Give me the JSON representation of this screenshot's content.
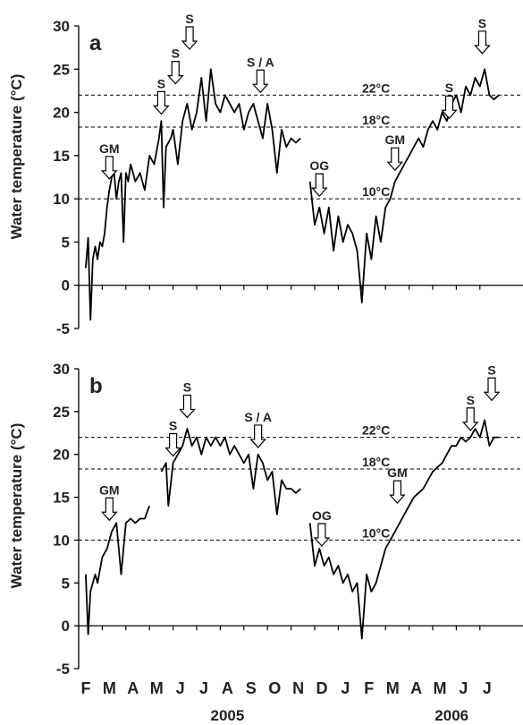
{
  "figure": {
    "ylabel": "Water temperature (°C)",
    "month_labels": [
      "F",
      "M",
      "A",
      "M",
      "J",
      "J",
      "A",
      "S",
      "O",
      "N",
      "D",
      "J",
      "F",
      "M",
      "A",
      "M",
      "J",
      "J"
    ],
    "year_labels": [
      {
        "text": "2005",
        "month_index": 6
      },
      {
        "text": "2006",
        "month_index": 15.5
      }
    ]
  },
  "colors": {
    "line": "#000000",
    "axis": "#000000",
    "text": "#222222",
    "threshold": "#000000"
  },
  "chart_data": [
    {
      "panel": "a",
      "type": "line",
      "xlabel": "",
      "ylabel": "Water temperature (°C)",
      "x_unit": "month (0 = 1 Feb 2005)",
      "xlim": [
        0,
        17.9
      ],
      "ylim": [
        -5,
        30
      ],
      "yticks": [
        -5,
        0,
        5,
        10,
        15,
        20,
        25,
        30
      ],
      "thresholds": [
        {
          "value": 22,
          "label": "22°C"
        },
        {
          "value": 18.3,
          "label": "18°C"
        },
        {
          "value": 10,
          "label": "10°C"
        }
      ],
      "annotations": [
        {
          "label": "GM",
          "x": 1.3,
          "y": 12
        },
        {
          "label": "S",
          "x": 3.5,
          "y": 19.5
        },
        {
          "label": "S",
          "x": 4.1,
          "y": 23
        },
        {
          "label": "S",
          "x": 4.7,
          "y": 27
        },
        {
          "label": "S / A",
          "x": 7.7,
          "y": 22
        },
        {
          "label": "OG",
          "x": 10.2,
          "y": 10
        },
        {
          "label": "GM",
          "x": 13.4,
          "y": 13
        },
        {
          "label": "S",
          "x": 15.7,
          "y": 19
        },
        {
          "label": "S",
          "x": 17.1,
          "y": 26.5
        }
      ],
      "series": [
        {
          "segments": [
            [
              [
                0.3,
                2
              ],
              [
                0.4,
                5.5
              ],
              [
                0.5,
                -4
              ],
              [
                0.6,
                3
              ],
              [
                0.7,
                4.5
              ],
              [
                0.8,
                3
              ],
              [
                0.9,
                5
              ],
              [
                1.0,
                4.5
              ],
              [
                1.1,
                6
              ],
              [
                1.2,
                9
              ],
              [
                1.3,
                11
              ],
              [
                1.4,
                12.5
              ],
              [
                1.5,
                13
              ],
              [
                1.6,
                10
              ],
              [
                1.7,
                12
              ],
              [
                1.8,
                13
              ],
              [
                1.9,
                5
              ],
              [
                2.0,
                13
              ],
              [
                2.1,
                12
              ],
              [
                2.2,
                14
              ],
              [
                2.4,
                12
              ],
              [
                2.6,
                13
              ],
              [
                2.8,
                11
              ],
              [
                3.0,
                15
              ],
              [
                3.2,
                14
              ],
              [
                3.4,
                17
              ],
              [
                3.5,
                19
              ],
              [
                3.6,
                9
              ],
              [
                3.7,
                16
              ],
              [
                3.9,
                17
              ],
              [
                4.0,
                18
              ],
              [
                4.2,
                14
              ],
              [
                4.4,
                19
              ],
              [
                4.6,
                21
              ],
              [
                4.8,
                18
              ],
              [
                5.0,
                20
              ],
              [
                5.2,
                24
              ],
              [
                5.4,
                19
              ],
              [
                5.6,
                25
              ],
              [
                5.8,
                21
              ],
              [
                6.0,
                20
              ],
              [
                6.2,
                22
              ],
              [
                6.4,
                21
              ],
              [
                6.6,
                20
              ],
              [
                6.8,
                21
              ],
              [
                7.0,
                18
              ],
              [
                7.2,
                20
              ],
              [
                7.4,
                21
              ],
              [
                7.6,
                19
              ],
              [
                7.8,
                17
              ],
              [
                8.0,
                21
              ],
              [
                8.2,
                18
              ],
              [
                8.4,
                13
              ],
              [
                8.6,
                18
              ],
              [
                8.8,
                16
              ],
              [
                9.0,
                17
              ],
              [
                9.2,
                16.5
              ],
              [
                9.4,
                17
              ]
            ],
            [
              [
                9.8,
                12
              ],
              [
                10.0,
                7
              ],
              [
                10.2,
                9
              ],
              [
                10.4,
                6
              ],
              [
                10.6,
                9
              ],
              [
                10.8,
                4
              ],
              [
                11.0,
                8
              ],
              [
                11.2,
                5
              ],
              [
                11.4,
                7
              ],
              [
                11.6,
                6
              ],
              [
                11.8,
                4
              ],
              [
                12.0,
                -2
              ],
              [
                12.2,
                6
              ],
              [
                12.4,
                3
              ],
              [
                12.6,
                8
              ],
              [
                12.8,
                5
              ],
              [
                13.0,
                9
              ],
              [
                13.2,
                10
              ],
              [
                13.4,
                12
              ],
              [
                13.6,
                13
              ],
              [
                13.8,
                14
              ],
              [
                14.0,
                15
              ],
              [
                14.2,
                16
              ],
              [
                14.4,
                17
              ],
              [
                14.6,
                16
              ],
              [
                14.8,
                18
              ],
              [
                15.0,
                19
              ],
              [
                15.2,
                18
              ],
              [
                15.4,
                20
              ],
              [
                15.6,
                19
              ],
              [
                15.8,
                21
              ],
              [
                16.0,
                22
              ],
              [
                16.2,
                20
              ],
              [
                16.4,
                23
              ],
              [
                16.6,
                22
              ],
              [
                16.8,
                24
              ],
              [
                17.0,
                23
              ],
              [
                17.2,
                25
              ],
              [
                17.4,
                22
              ],
              [
                17.6,
                21.5
              ],
              [
                17.8,
                22
              ]
            ]
          ]
        }
      ]
    },
    {
      "panel": "b",
      "type": "line",
      "xlabel": "",
      "ylabel": "Water temperature (°C)",
      "x_unit": "month (0 = 1 Feb 2005)",
      "xlim": [
        0,
        17.9
      ],
      "ylim": [
        -5,
        30
      ],
      "yticks": [
        -5,
        0,
        5,
        10,
        15,
        20,
        25,
        30
      ],
      "xticks": [
        "F",
        "M",
        "A",
        "M",
        "J",
        "J",
        "A",
        "S",
        "O",
        "N",
        "D",
        "J",
        "F",
        "M",
        "A",
        "M",
        "J",
        "J"
      ],
      "year_labels": [
        "2005",
        "2006"
      ],
      "thresholds": [
        {
          "value": 22,
          "label": "22°C"
        },
        {
          "value": 18.3,
          "label": "18°C"
        },
        {
          "value": 10,
          "label": "10°C"
        }
      ],
      "annotations": [
        {
          "label": "GM",
          "x": 1.3,
          "y": 12
        },
        {
          "label": "S",
          "x": 4.0,
          "y": 19.5
        },
        {
          "label": "S",
          "x": 4.6,
          "y": 24
        },
        {
          "label": "S / A",
          "x": 7.6,
          "y": 20.5
        },
        {
          "label": "OG",
          "x": 10.3,
          "y": 9
        },
        {
          "label": "GM",
          "x": 13.5,
          "y": 14
        },
        {
          "label": "S",
          "x": 16.6,
          "y": 22.5
        },
        {
          "label": "S",
          "x": 17.5,
          "y": 26
        }
      ],
      "series": [
        {
          "segments": [
            [
              [
                0.3,
                6
              ],
              [
                0.4,
                -1
              ],
              [
                0.5,
                4
              ],
              [
                0.6,
                5
              ],
              [
                0.7,
                6
              ],
              [
                0.8,
                5
              ],
              [
                1.0,
                8
              ],
              [
                1.2,
                9
              ],
              [
                1.4,
                11
              ],
              [
                1.6,
                12
              ],
              [
                1.8,
                6
              ],
              [
                2.0,
                12
              ],
              [
                2.2,
                12.5
              ],
              [
                2.4,
                12
              ],
              [
                2.6,
                12.5
              ],
              [
                2.8,
                12.5
              ],
              [
                3.0,
                14
              ]
            ],
            [
              [
                3.5,
                18
              ],
              [
                3.7,
                19
              ],
              [
                3.8,
                14
              ],
              [
                4.0,
                19
              ],
              [
                4.2,
                20
              ],
              [
                4.4,
                21
              ],
              [
                4.6,
                23
              ],
              [
                4.8,
                21
              ],
              [
                5.0,
                22
              ],
              [
                5.2,
                20
              ],
              [
                5.4,
                22
              ],
              [
                5.6,
                21
              ],
              [
                5.8,
                22
              ],
              [
                6.0,
                21
              ],
              [
                6.2,
                22
              ],
              [
                6.4,
                20
              ],
              [
                6.6,
                21
              ],
              [
                6.8,
                20
              ],
              [
                7.0,
                19
              ],
              [
                7.2,
                20
              ],
              [
                7.4,
                16
              ],
              [
                7.6,
                20
              ],
              [
                7.8,
                19
              ],
              [
                8.0,
                17
              ],
              [
                8.2,
                18
              ],
              [
                8.4,
                13
              ],
              [
                8.6,
                17
              ],
              [
                8.8,
                16
              ],
              [
                9.0,
                16
              ],
              [
                9.2,
                15.5
              ],
              [
                9.4,
                16
              ]
            ],
            [
              [
                9.8,
                12
              ],
              [
                10.0,
                7
              ],
              [
                10.2,
                9
              ],
              [
                10.4,
                7
              ],
              [
                10.6,
                8
              ],
              [
                10.8,
                6
              ],
              [
                11.0,
                7
              ],
              [
                11.2,
                5
              ],
              [
                11.4,
                6
              ],
              [
                11.6,
                4
              ],
              [
                11.8,
                5
              ],
              [
                12.0,
                -1.5
              ],
              [
                12.2,
                6
              ],
              [
                12.4,
                4
              ],
              [
                12.6,
                5
              ],
              [
                12.8,
                7
              ],
              [
                13.0,
                9
              ],
              [
                13.2,
                10
              ],
              [
                13.4,
                11
              ],
              [
                13.6,
                12
              ],
              [
                13.8,
                13
              ],
              [
                14.0,
                14
              ],
              [
                14.2,
                15
              ],
              [
                14.4,
                15.5
              ],
              [
                14.6,
                16
              ],
              [
                14.8,
                17
              ],
              [
                15.0,
                18
              ],
              [
                15.2,
                18.5
              ],
              [
                15.4,
                19
              ],
              [
                15.6,
                20
              ],
              [
                15.8,
                21
              ],
              [
                16.0,
                21
              ],
              [
                16.2,
                22
              ],
              [
                16.4,
                21.5
              ],
              [
                16.6,
                22
              ],
              [
                16.8,
                23
              ],
              [
                17.0,
                22
              ],
              [
                17.2,
                24
              ],
              [
                17.4,
                21
              ],
              [
                17.6,
                22
              ],
              [
                17.8,
                22
              ]
            ]
          ]
        }
      ]
    }
  ]
}
